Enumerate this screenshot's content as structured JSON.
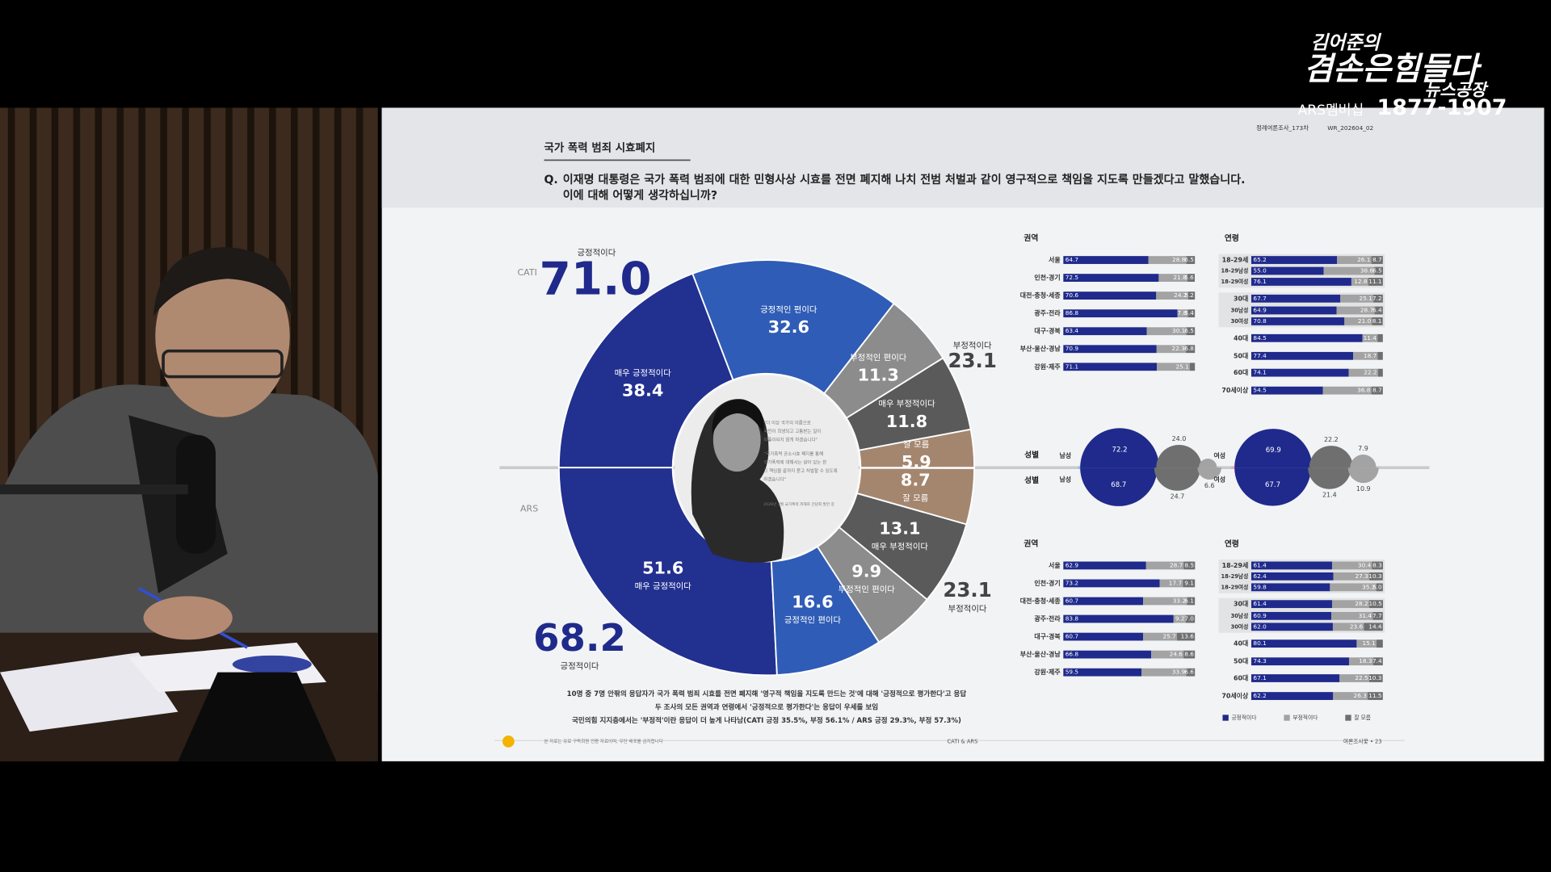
{
  "broadcast": {
    "logo_line1": "김어준의",
    "logo_line2": "겸손은힘들다",
    "logo_line3": "뉴스공장",
    "ars_label": "ARS멤버십",
    "ars_number": "1877-1907"
  },
  "slide": {
    "section": "국가 폭력 범죄 시효폐지",
    "code1": "정례여론조사_173차",
    "code2": "WR_202604_02",
    "question_mark": "Q.",
    "question_line1": "이재명 대통령은 국가 폭력 범죄에 대한 민형사상 시효를 전면 폐지해 나치 전범 처벌과 같이 영구적으로 책임을 지도록 만들겠다고 말했습니다.",
    "question_line2": "이에 대해 어떻게 생각하십니까?",
    "quote": [
      "“더 이상 국가의 이름으로",
      "국민이 희생되고 고통받는 일이",
      "되풀이되지 않게 하겠습니다”",
      "“국가폭력 공소시효 폐지를 통해",
      "국가폭력에 대해서는 살아 있는 한",
      "그 책임을 끝까지 묻고 처벌할 수 있도록",
      "하겠습니다”",
      "2026년 3월 국가폭력 피해자 간담회 발언 중"
    ],
    "notes": [
      "10명 중 7명 안팎의 응답자가 국가 폭력 범죄 시효를 전면 폐지해 '영구적 책임을 지도록 만드는 것'에 대해 '긍정적으로 평가한다'고 응답",
      "두 조사의 모든 권역과 연령에서 '긍정적으로 평가한다'는 응답이 우세를 보임",
      "국민의힘 지지층에서는 '부정적'이란 응답이 더 높게 나타남(CATI 긍정 35.5%, 부정 56.1% / ARS 긍정 29.3%, 부정 57.3%)"
    ],
    "footer_note": "본 자료는 유료 구독회원 전용 자료이며, 무단 배포를 금지합니다",
    "footer_center": "CATI & ARS",
    "footer_right": "여론조사꽃 • 23"
  },
  "chart_data": [
    {
      "type": "pie",
      "name": "CATI",
      "categories": [
        "매우 긍정적이다",
        "긍정적인 편이다",
        "부정적인 편이다",
        "매우 부정적이다",
        "잘 모름"
      ],
      "values": [
        38.4,
        32.6,
        11.3,
        11.8,
        5.9
      ],
      "colors": [
        "#22308f",
        "#2f5cb6",
        "#8c8c8c",
        "#5a5a5a",
        "#a4866f"
      ],
      "totals": {
        "labels": [
          "긍정적이다",
          "부정적이다"
        ],
        "values": [
          71,
          23.1
        ],
        "value_labels": [
          "71.0",
          "23.1"
        ]
      }
    },
    {
      "type": "pie",
      "name": "ARS",
      "categories": [
        "매우 긍정적이다",
        "긍정적인 편이다",
        "부정적인 편이다",
        "매우 부정적이다",
        "잘 모름"
      ],
      "values": [
        51.6,
        16.6,
        9.9,
        13.1,
        8.7
      ],
      "colors": [
        "#22308f",
        "#2f5cb6",
        "#8c8c8c",
        "#5a5a5a",
        "#a4866f"
      ],
      "totals": {
        "labels": [
          "긍정적이다",
          "부정적이다"
        ],
        "values": [
          68.2,
          23.1
        ]
      }
    },
    {
      "type": "stacked-bars",
      "legend": {
        "names": [
          "긍정적이다",
          "부정적이다",
          "잘 모름"
        ],
        "colors": [
          "#1f2a8c",
          "#a3a3a3",
          "#6f6f6f"
        ]
      },
      "panels": [
        {
          "survey": "CATI",
          "title": "권역",
          "categories": [
            "서울",
            "인천·경기",
            "대전·충청·세종",
            "광주·전라",
            "대구·경북",
            "부산·울산·경남",
            "강원·제주"
          ],
          "series": [
            {
              "values": [
                64.7,
                72.5,
                70.6,
                86.8,
                63.4,
                70.9,
                71.1
              ]
            },
            {
              "values": [
                28.8,
                21.8,
                24.2,
                7.8,
                30.1,
                22.3,
                25.1
              ]
            },
            {
              "values": [
                6.5,
                5.6,
                5.2,
                5.4,
                6.5,
                6.8,
                3.8
              ],
              "value_labels": [
                "6.5",
                "5.6",
                "5.2",
                "5.4",
                "6.5",
                "6.8",
                null
              ]
            }
          ]
        },
        {
          "survey": "CATI",
          "title": "연령",
          "categories": [
            "18-29세",
            "18-29남성",
            "18-29여성",
            "30대",
            "30남성",
            "30여성",
            "40대",
            "50대",
            "60대",
            "70세이상"
          ],
          "series": [
            {
              "values": [
                65.2,
                55.0,
                76.1,
                67.7,
                64.9,
                70.8,
                84.5,
                77.4,
                74.1,
                54.5
              ],
              "value_labels": [
                "65.2",
                "55.0",
                "76.1",
                "67.7",
                "64.9",
                "70.8",
                "84.5",
                "77.4",
                "74.1",
                "54.5"
              ]
            },
            {
              "values": [
                26.1,
                38.6,
                12.8,
                25.1,
                28.7,
                21.0,
                11.4,
                18.7,
                22.2,
                36.8
              ],
              "value_labels": [
                "26.1",
                "38.6",
                "12.8",
                "25.1",
                "28.7",
                "21.0",
                "11.4",
                "18.7",
                "22.2",
                "36.8"
              ]
            },
            {
              "values": [
                8.7,
                6.5,
                11.1,
                7.2,
                6.4,
                8.1,
                4.1,
                3.9,
                3.7,
                8.7
              ],
              "value_labels": [
                "8.7",
                "6.5",
                "11.1",
                "7.2",
                "6.4",
                "8.1",
                null,
                null,
                null,
                "8.7"
              ]
            }
          ]
        },
        {
          "survey": "ARS",
          "title": "권역",
          "categories": [
            "서울",
            "인천·경기",
            "대전·충청·세종",
            "광주·전라",
            "대구·경북",
            "부산·울산·경남",
            "강원·제주"
          ],
          "series": [
            {
              "values": [
                62.9,
                73.2,
                60.7,
                83.8,
                60.7,
                66.8,
                59.5
              ]
            },
            {
              "values": [
                28.7,
                17.7,
                33.2,
                9.2,
                25.7,
                24.6,
                33.9
              ]
            },
            {
              "values": [
                8.5,
                9.1,
                6.1,
                7.0,
                13.6,
                8.6,
                6.6
              ],
              "value_labels": [
                "8.5",
                "9.1",
                "6.1",
                "7.0",
                "13.6",
                "8.6",
                "6.6"
              ]
            }
          ]
        },
        {
          "survey": "ARS",
          "title": "연령",
          "categories": [
            "18-29세",
            "18-29남성",
            "18-29여성",
            "30대",
            "30남성",
            "30여성",
            "40대",
            "50대",
            "60대",
            "70세이상"
          ],
          "series": [
            {
              "values": [
                61.4,
                62.4,
                59.8,
                61.4,
                60.9,
                62.0,
                80.1,
                74.3,
                67.1,
                62.2
              ],
              "value_labels": [
                "61.4",
                "62.4",
                "59.8",
                "61.4",
                "60.9",
                "62.0",
                "80.1",
                "74.3",
                "67.1",
                "62.2"
              ]
            },
            {
              "values": [
                30.4,
                27.3,
                35.2,
                28.2,
                31.4,
                23.6,
                15.1,
                18.3,
                22.5,
                26.3
              ]
            },
            {
              "values": [
                8.3,
                10.3,
                5.0,
                10.5,
                7.7,
                14.4,
                4.8,
                7.4,
                10.3,
                11.5
              ],
              "value_labels": [
                "8.3",
                "10.3",
                "5.0",
                "10.5",
                "7.7",
                "14.4",
                null,
                "7.4",
                "10.3",
                "11.5"
              ]
            }
          ]
        }
      ]
    },
    {
      "type": "bubble",
      "colors": [
        "#1f2a8c",
        "#6f6f6f",
        "#a3a3a3"
      ],
      "panels": [
        {
          "survey": "CATI",
          "title": "성별",
          "categories": [
            "남성",
            "여성"
          ],
          "series": [
            {
              "values": [
                72.2,
                69.9
              ]
            },
            {
              "values": [
                24.0,
                22.2
              ],
              "value_labels": [
                "24.0",
                "22.2"
              ]
            },
            {
              "values": [
                3.8,
                7.9
              ],
              "value_labels": [
                null,
                "7.9"
              ]
            }
          ]
        },
        {
          "survey": "ARS",
          "title": "성별",
          "categories": [
            "남성",
            "여성"
          ],
          "series": [
            {
              "values": [
                68.7,
                67.7
              ]
            },
            {
              "values": [
                24.7,
                21.4
              ]
            },
            {
              "values": [
                6.6,
                10.9
              ]
            }
          ]
        }
      ]
    }
  ]
}
